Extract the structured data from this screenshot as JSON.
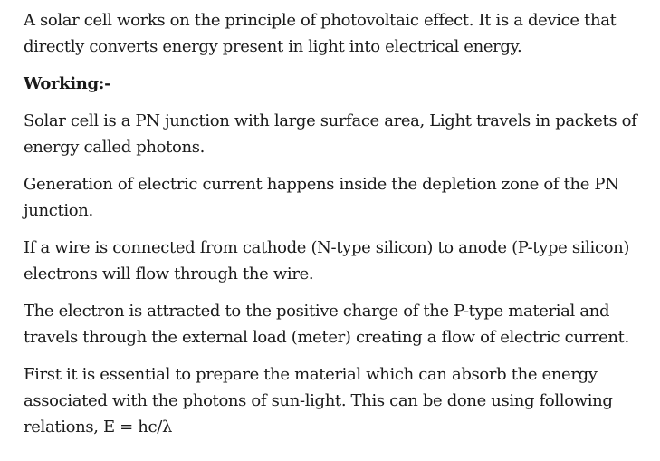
{
  "document": {
    "intro": "A solar cell works on the principle of photovoltaic effect. It is a device that directly converts energy present in light into electrical energy.",
    "heading": "Working:-",
    "paragraphs": [
      "Solar cell is a PN junction with large surface area, Light travels in packets of energy called photons.",
      "Generation of electric current happens inside the depletion zone of the PN junction.",
      "If a wire is connected from cathode (N-type silicon) to anode (P-type silicon) electrons will flow through the wire.",
      "The electron is attracted to the positive charge of the P-type material and travels through the external load (meter) creating a flow of electric current.",
      "First it is essential to prepare the material which can absorb the energy associated with the photons of sun-light. This can be done using following relations,  E = hc/λ"
    ]
  }
}
